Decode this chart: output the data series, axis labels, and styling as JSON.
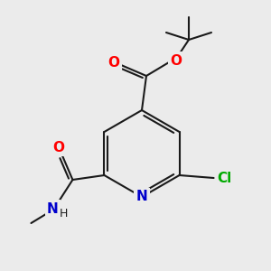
{
  "bg_color": "#ebebeb",
  "bond_color": "#1a1a1a",
  "atom_colors": {
    "O": "#ff0000",
    "N": "#0000cc",
    "Cl": "#00aa00",
    "C": "#1a1a1a"
  },
  "lw": 1.5,
  "lw_double": 1.5
}
